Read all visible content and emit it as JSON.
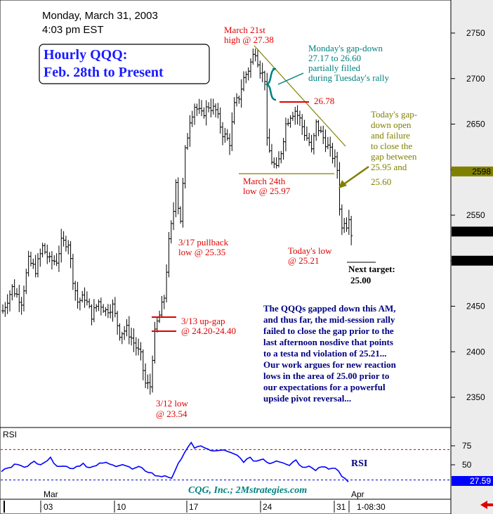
{
  "header": {
    "date": "Monday, March 31, 2003",
    "time": "4:03 pm EST"
  },
  "title_box": {
    "line1": "Hourly QQQ:",
    "line2": "Feb. 28th to Present"
  },
  "colors": {
    "price": "#000000",
    "annotation_red": "#e00000",
    "annotation_teal": "#008080",
    "annotation_olive": "#808000",
    "commentary_navy": "#000080",
    "title_blue": "#1a1aff",
    "rsi_line": "#0000ff",
    "right_axis_bg": "#ececec",
    "tag_dark": "#000000",
    "tag_olive": "#808000",
    "tag_blue": "#0000ff"
  },
  "annotations": {
    "march21": [
      "March 21st",
      "high @ 27.38"
    ],
    "gap_note": [
      "Monday's gap-down",
      "27.17 to 26.60",
      "partially filled",
      "during Tuesday's rally"
    ],
    "level_2678": "26.78",
    "today_gap": [
      "Today's gap-",
      "down open",
      "and failure",
      "to close the",
      "gap between",
      "25.95 and",
      "25.60"
    ],
    "march24": [
      "March 24th",
      "low @ 25.97"
    ],
    "pullback": [
      "3/17 pullback",
      "low @ 25.35"
    ],
    "todays_low": [
      "Today's low",
      "@ 25.21"
    ],
    "next_target": [
      "Next target:",
      "25.00"
    ],
    "upgap": [
      "3/13 up-gap",
      "@ 24.20-24.40"
    ],
    "low312": [
      "3/12 low",
      "@ 23.54"
    ],
    "commentary": [
      "The QQQs gapped down this AM,",
      "and thus far, the mid-session rally",
      "failed to close the gap prior to the",
      "last afternoon nosdive that points",
      "to a testa nd violation of 25.21...",
      "Our work argues for new reaction",
      "lows in the area of 25.00 prior to",
      "our expectations for a powerful",
      "upside pivot reversal..."
    ]
  },
  "rsi_panel": {
    "label": "RSI",
    "series_label": "RSI",
    "credit": "CQG, Inc.; 2Mstrategies.com",
    "current_value": "27.59"
  },
  "x_axis": {
    "months": [
      "Mar",
      "Apr"
    ],
    "days": [
      "03",
      "10",
      "17",
      "24",
      "31"
    ],
    "clock": "1-08:30"
  },
  "chart_data": [
    {
      "type": "bar",
      "title": "Hourly QQQ: Feb. 28th to Present",
      "y_tick_labels": [
        "2750",
        "2700",
        "2650",
        "2600",
        "2550",
        "2500",
        "2450",
        "2400",
        "2350"
      ],
      "ylim": [
        2315,
        2775
      ],
      "x_categories": [
        "03",
        "10",
        "17",
        "24",
        "31"
      ],
      "right_axis_tags": [
        {
          "label": "2598",
          "value": 2598,
          "style": "olive"
        },
        {
          "label": "2532",
          "value": 2532,
          "style": "dark"
        },
        {
          "label": "2500",
          "value": 2500,
          "style": "dark"
        }
      ],
      "key_levels": [
        {
          "label": "March 21st high",
          "value": 27.38
        },
        {
          "label": "Gap 26.78",
          "value": 26.78
        },
        {
          "label": "March 24th low",
          "value": 25.97
        },
        {
          "label": "3/17 pullback low",
          "value": 25.35
        },
        {
          "label": "Today's low",
          "value": 25.21
        },
        {
          "label": "Next target",
          "value": 25.0
        },
        {
          "label": "3/13 up-gap top",
          "value": 24.4
        },
        {
          "label": "3/13 up-gap bottom",
          "value": 24.2
        },
        {
          "label": "3/12 low",
          "value": 23.54
        }
      ],
      "anchors": [
        [
          0,
          2445
        ],
        [
          4,
          2470
        ],
        [
          8,
          2455
        ],
        [
          11,
          2500
        ],
        [
          14,
          2490
        ],
        [
          17,
          2515
        ],
        [
          20,
          2500
        ],
        [
          23,
          2500
        ],
        [
          25,
          2520
        ],
        [
          28,
          2520
        ],
        [
          30,
          2480
        ],
        [
          32,
          2455
        ],
        [
          35,
          2460
        ],
        [
          38,
          2440
        ],
        [
          41,
          2455
        ],
        [
          44,
          2445
        ],
        [
          47,
          2450
        ],
        [
          50,
          2420
        ],
        [
          53,
          2425
        ],
        [
          56,
          2410
        ],
        [
          59,
          2395
        ],
        [
          61,
          2365
        ],
        [
          63,
          2362
        ],
        [
          64,
          2395
        ],
        [
          65,
          2420
        ],
        [
          66,
          2432
        ],
        [
          67,
          2440
        ],
        [
          69,
          2460
        ],
        [
          71,
          2520
        ],
        [
          73,
          2555
        ],
        [
          74,
          2590
        ],
        [
          75,
          2560
        ],
        [
          76,
          2545
        ],
        [
          78,
          2620
        ],
        [
          80,
          2655
        ],
        [
          82,
          2670
        ],
        [
          85,
          2660
        ],
        [
          88,
          2670
        ],
        [
          91,
          2665
        ],
        [
          94,
          2640
        ],
        [
          97,
          2630
        ],
        [
          99,
          2670
        ],
        [
          101,
          2680
        ],
        [
          103,
          2700
        ],
        [
          105,
          2710
        ],
        [
          107,
          2725
        ],
        [
          108,
          2730
        ],
        [
          110,
          2710
        ],
        [
          112,
          2700
        ],
        [
          113,
          2630
        ],
        [
          115,
          2610
        ],
        [
          117,
          2600
        ],
        [
          119,
          2620
        ],
        [
          121,
          2650
        ],
        [
          123,
          2660
        ],
        [
          125,
          2665
        ],
        [
          127,
          2655
        ],
        [
          129,
          2640
        ],
        [
          131,
          2630
        ],
        [
          132,
          2620
        ],
        [
          134,
          2650
        ],
        [
          136,
          2640
        ],
        [
          138,
          2630
        ],
        [
          140,
          2620
        ],
        [
          142,
          2610
        ],
        [
          143,
          2600
        ],
        [
          144,
          2560
        ],
        [
          145,
          2535
        ],
        [
          146,
          2545
        ],
        [
          147,
          2540
        ],
        [
          148,
          2550
        ],
        [
          149,
          2530
        ]
      ],
      "gap_after_index": 143
    },
    {
      "type": "line",
      "title": "RSI",
      "y_tick_labels": [
        "75",
        "50"
      ],
      "ylim": [
        10,
        100
      ],
      "reference_lines": [
        70,
        30
      ],
      "anchors": [
        [
          0,
          42
        ],
        [
          3,
          47
        ],
        [
          5,
          52
        ],
        [
          8,
          47
        ],
        [
          10,
          54
        ],
        [
          12,
          52
        ],
        [
          15,
          58
        ],
        [
          17,
          50
        ],
        [
          19,
          48
        ],
        [
          22,
          46
        ],
        [
          25,
          52
        ],
        [
          27,
          46
        ],
        [
          29,
          48
        ],
        [
          31,
          53
        ],
        [
          34,
          49
        ],
        [
          37,
          51
        ],
        [
          40,
          44
        ],
        [
          42,
          46
        ],
        [
          45,
          41
        ],
        [
          48,
          34
        ],
        [
          50,
          36
        ],
        [
          52,
          33
        ],
        [
          53,
          40
        ],
        [
          55,
          60
        ],
        [
          57,
          74
        ],
        [
          58,
          78
        ],
        [
          59,
          70
        ],
        [
          61,
          76
        ],
        [
          63,
          70
        ],
        [
          65,
          67
        ],
        [
          67,
          70
        ],
        [
          70,
          65
        ],
        [
          72,
          62
        ],
        [
          74,
          55
        ],
        [
          76,
          58
        ],
        [
          78,
          55
        ],
        [
          80,
          58
        ],
        [
          82,
          52
        ],
        [
          84,
          56
        ],
        [
          86,
          54
        ],
        [
          88,
          50
        ],
        [
          90,
          57
        ],
        [
          92,
          46
        ],
        [
          94,
          50
        ],
        [
          96,
          44
        ],
        [
          98,
          48
        ],
        [
          100,
          46
        ],
        [
          102,
          44
        ],
        [
          103,
          40
        ],
        [
          104,
          35
        ],
        [
          105,
          32
        ],
        [
          106,
          27
        ]
      ]
    }
  ]
}
